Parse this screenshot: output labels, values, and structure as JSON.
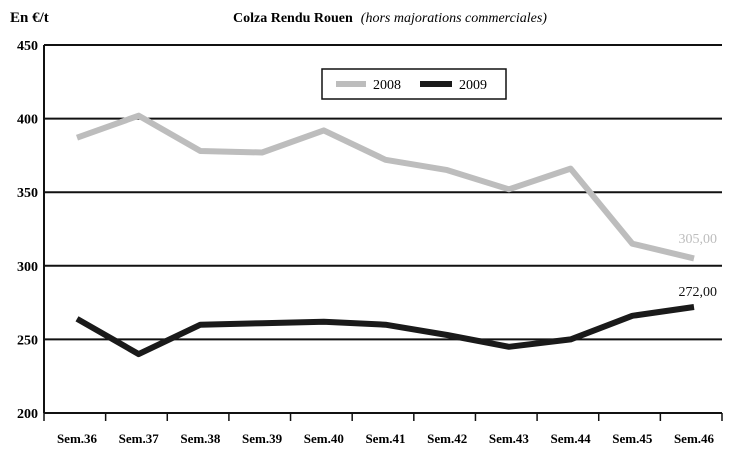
{
  "chart_data": {
    "type": "line",
    "unit_label": "En €/t",
    "title": "Colza Rendu Rouen",
    "subtitle": "(hors majorations commerciales)",
    "categories": [
      "Sem.36",
      "Sem.37",
      "Sem.38",
      "Sem.39",
      "Sem.40",
      "Sem.41",
      "Sem.42",
      "Sem.43",
      "Sem.44",
      "Sem.45",
      "Sem.46"
    ],
    "ylim": [
      200,
      450
    ],
    "yticks": [
      200,
      250,
      300,
      350,
      400,
      450
    ],
    "grid": true,
    "legend_position": "top-center",
    "series": [
      {
        "name": "2008",
        "color": "#bdbdbd",
        "values": [
          387,
          402,
          378,
          377,
          392,
          372,
          365,
          352,
          366,
          315,
          305
        ]
      },
      {
        "name": "2009",
        "color": "#1a1a1a",
        "values": [
          264,
          240,
          260,
          261,
          262,
          260,
          253,
          245,
          250,
          266,
          272
        ]
      }
    ],
    "annotations": [
      {
        "series": "2008",
        "text": "305,00"
      },
      {
        "series": "2009",
        "text": "272,00"
      }
    ]
  }
}
